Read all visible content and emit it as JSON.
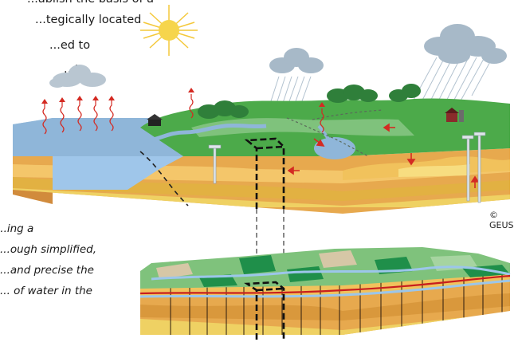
{
  "intro_lines": [
    "...ablish the basis of a",
    "...tegically located",
    "...ed to",
    "...ta."
  ],
  "caption_lines": [
    "...ing a",
    "...ough simplified,",
    "...and precise the",
    "... of water in the"
  ],
  "copyright": "© GEUS",
  "icons": [
    "sun-icon",
    "cloud-icon",
    "rain-cloud-icon",
    "evaporation-arrow-icon",
    "house-icon",
    "farm-icon",
    "tree-icon",
    "well-icon",
    "flow-arrow-icon"
  ],
  "colors": {
    "sea": "#8fb6d9",
    "land_green": "#4caa4a",
    "sand": "#e7a94e",
    "clay": "#d38a3a",
    "yellow": "#e9c94b",
    "arrow": "#d42a22",
    "model_line": "#c81e1e",
    "aquifer_line": "#9cc6ea"
  }
}
